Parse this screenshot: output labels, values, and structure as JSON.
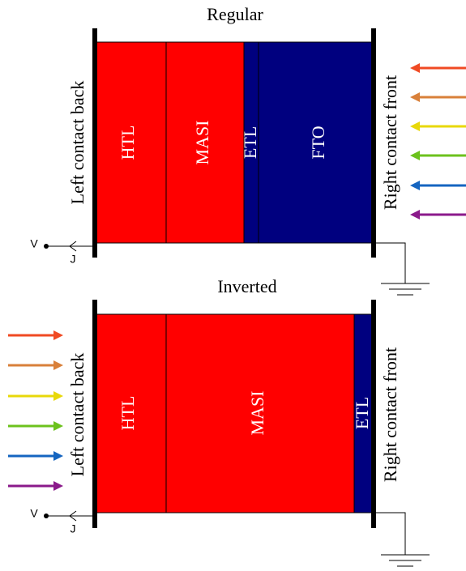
{
  "regular": {
    "title": "Regular",
    "layers": [
      "HTL",
      "MASI",
      "ETL",
      "FTO"
    ],
    "left_contact": "Left contact back",
    "right_contact": "Right contact front",
    "voltage": "V",
    "current": "J"
  },
  "inverted": {
    "title": "Inverted",
    "layers": [
      "HTL",
      "MASI",
      "ETL"
    ],
    "left_contact": "Left contact back",
    "right_contact": "Right contact front",
    "voltage": "V",
    "current": "J"
  }
}
